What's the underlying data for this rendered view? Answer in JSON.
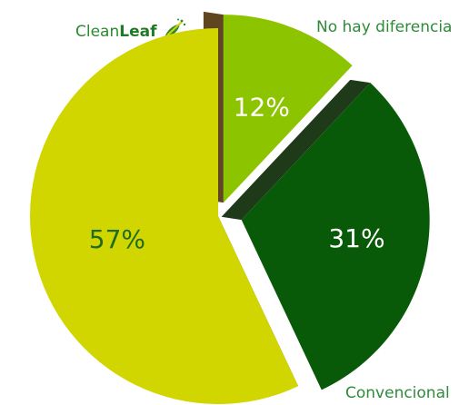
{
  "brand": {
    "name_regular": "Clean",
    "name_bold": "Leaf",
    "icon": "leaf-broom-icon"
  },
  "colors": {
    "cleanleaf": "#d2d600",
    "no_difference": "#8cc400",
    "conventional": "#085a09",
    "side_shadow": "#5f4620",
    "side_shadow_green": "#1f3a19",
    "label_dark": "#1e6b22",
    "label_light": "#ffffff"
  },
  "labels": {
    "no_difference": "No hay diferencia",
    "conventional": "Convencional"
  },
  "chart_data": {
    "type": "pie",
    "exploded": true,
    "style": "3d-edge",
    "slices": [
      {
        "key": "no_difference",
        "value": 12,
        "label": "12%"
      },
      {
        "key": "conventional",
        "value": 31,
        "label": "31%"
      },
      {
        "key": "cleanleaf",
        "value": 57,
        "label": "57%"
      }
    ]
  }
}
